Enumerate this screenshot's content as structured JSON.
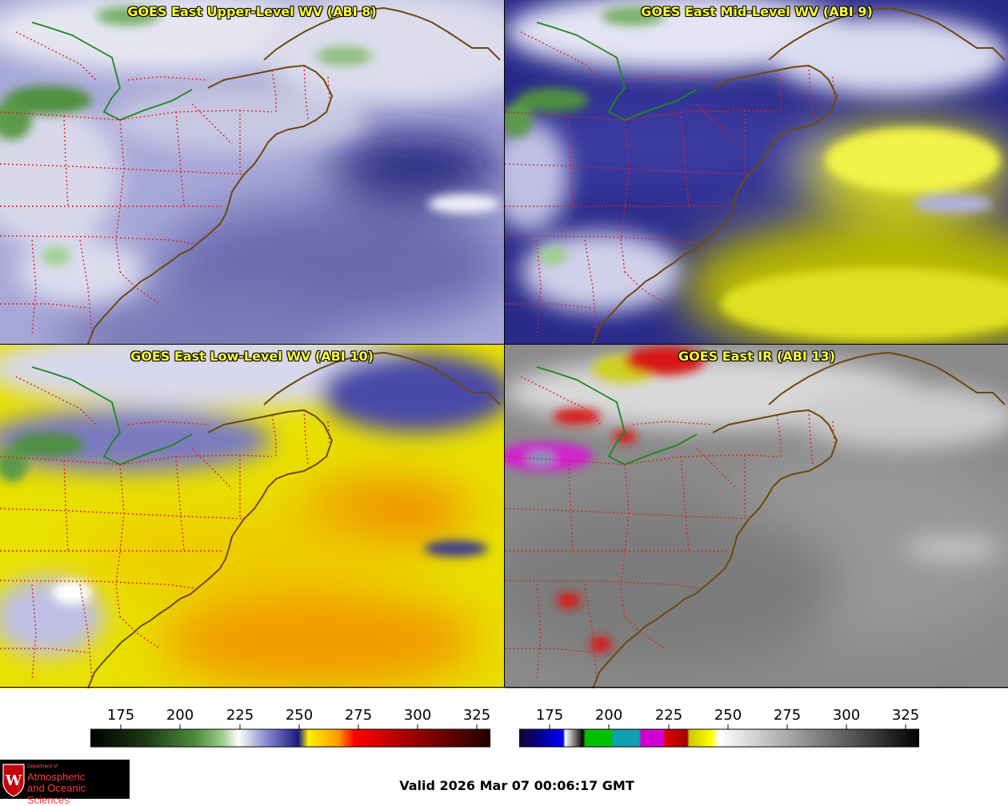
{
  "panels": {
    "upper": {
      "title": "GOES East Upper-Level WV (ABI 8)"
    },
    "mid": {
      "title": "GOES East Mid-Level WV (ABI 9)"
    },
    "low": {
      "title": "GOES East Low-Level WV (ABI 10)"
    },
    "ir": {
      "title": "GOES East IR (ABI 13)"
    }
  },
  "colorbars": {
    "wv": {
      "ticks": [
        "175",
        "200",
        "225",
        "250",
        "275",
        "300",
        "325"
      ]
    },
    "ir": {
      "ticks": [
        "175",
        "200",
        "225",
        "250",
        "275",
        "300",
        "325"
      ]
    }
  },
  "footer": {
    "valid_text": "Valid 2026 Mar 07 00:06:17 GMT",
    "logo": {
      "dept": "Department of",
      "line1": "Atmospheric",
      "line2": "and Oceanic Sciences",
      "mark": "W"
    }
  },
  "colors": {
    "title": "#ffff33",
    "coast": "#6b4a0a",
    "state_border": "#e02020",
    "us_canada_border": "#1a8a1a"
  }
}
